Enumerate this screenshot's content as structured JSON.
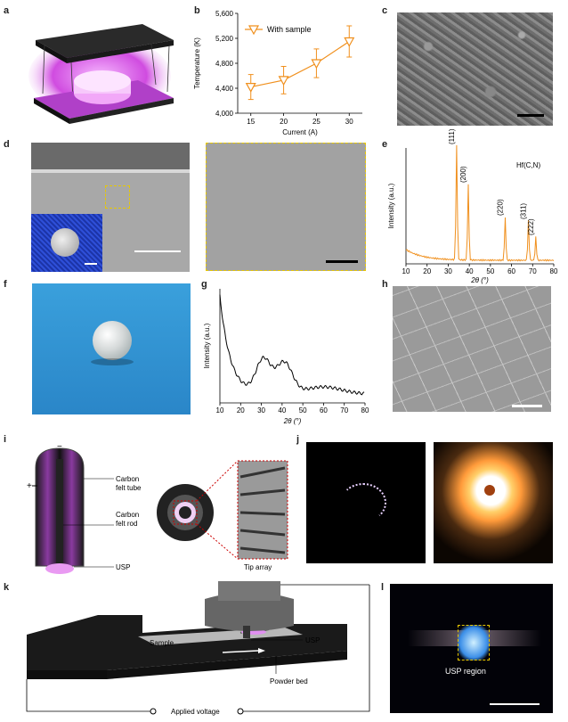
{
  "panel_labels": {
    "a": "a",
    "b": "b",
    "c": "c",
    "d": "d",
    "e": "e",
    "f": "f",
    "g": "g",
    "h": "h",
    "i": "i",
    "j": "j",
    "k": "k",
    "l": "l"
  },
  "colors": {
    "orange": "#f0901e",
    "black": "#111111",
    "magenta": "#d04ce0",
    "blue_bg": "#2a8fd0"
  },
  "chart_b": {
    "type": "line",
    "x": [
      15,
      20,
      25,
      30
    ],
    "series": [
      {
        "name": "With sample",
        "values": [
          4420,
          4530,
          4800,
          5150
        ],
        "err": [
          200,
          220,
          230,
          250
        ]
      }
    ],
    "xlabel": "Current (A)",
    "ylabel": "Temperature (K)",
    "xticks": [
      "15",
      "20",
      "25",
      "30"
    ],
    "yticks": [
      "4,000",
      "4,400",
      "4,800",
      "5,200",
      "5,600"
    ],
    "ylim": [
      4000,
      5600
    ],
    "legend": "With sample"
  },
  "chart_e": {
    "type": "line",
    "xlabel": "2θ (°)",
    "ylabel": "Intensity (a.u.)",
    "xticks": [
      "10",
      "20",
      "30",
      "40",
      "50",
      "60",
      "70",
      "80"
    ],
    "xlim": [
      10,
      80
    ],
    "compound": "Hf(C,N)",
    "peaks": [
      {
        "label": "(111)",
        "x": 34
      },
      {
        "label": "(200)",
        "x": 39.5
      },
      {
        "label": "(220)",
        "x": 57
      },
      {
        "label": "(311)",
        "x": 68
      },
      {
        "label": "(222)",
        "x": 71.5
      }
    ]
  },
  "chart_g": {
    "type": "line",
    "xlabel": "2θ (°)",
    "ylabel": "Intensity (a.u.)",
    "xticks": [
      "10",
      "20",
      "30",
      "40",
      "50",
      "60",
      "70",
      "80"
    ],
    "xlim": [
      10,
      80
    ]
  },
  "panel_i": {
    "minus": "−",
    "plus": "+",
    "label_tube_1": "Carbon",
    "label_tube_2": "felt tube",
    "label_rod_1": "Carbon",
    "label_rod_2": "felt rod",
    "label_usp": "USP",
    "tip_array": "Tip array"
  },
  "panel_k": {
    "sample": "Sample",
    "usp": "USP",
    "powder_bed": "Powder bed",
    "applied_voltage": "Applied voltage"
  },
  "panel_l": {
    "usp_region": "USP region"
  }
}
